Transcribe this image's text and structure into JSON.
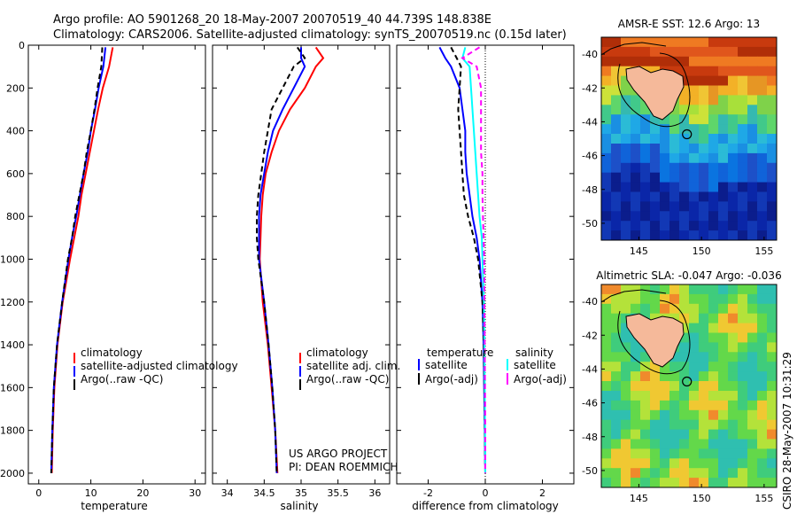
{
  "header": {
    "line1": "Argo profile: AO 5901268_20 18-May-2007 20070519_40 44.739S 148.838E",
    "line2": "Climatology: CARS2006. Satellite-adjusted climatology: synTS_20070519.nc (0.15d later)"
  },
  "credit": {
    "line1": "US ARGO PROJECT",
    "line2": "PI: DEAN ROEMMICH"
  },
  "stamp": "CSIRO 28-May-2007 10:31:29",
  "colors": {
    "climatology": "#ff0000",
    "satellite": "#0000ff",
    "argo": "#000000",
    "sal_satellite": "#00ffff",
    "sal_argo": "#ff00ff",
    "land": "#f5b99a"
  },
  "chart_data": [
    {
      "type": "line",
      "xlabel": "temperature",
      "xlim": [
        -2,
        32
      ],
      "xticks": [
        0,
        10,
        20,
        30
      ],
      "ylim": [
        2050,
        0
      ],
      "yticks": [
        0,
        200,
        400,
        600,
        800,
        1000,
        1200,
        1400,
        1600,
        1800,
        2000
      ],
      "y": [
        10,
        100,
        200,
        300,
        400,
        500,
        600,
        700,
        800,
        900,
        1000,
        1200,
        1400,
        1600,
        1800,
        2000
      ],
      "series": [
        {
          "name": "climatology",
          "color": "#ff0000",
          "dash": "",
          "values": [
            14.2,
            13.5,
            12.3,
            11.4,
            10.6,
            9.8,
            9.0,
            8.2,
            7.6,
            6.8,
            6.0,
            4.6,
            3.6,
            3.0,
            2.7,
            2.5
          ]
        },
        {
          "name": "satellite-adjusted climatology",
          "color": "#0000ff",
          "dash": "",
          "values": [
            12.8,
            12.4,
            11.5,
            10.8,
            10.0,
            9.4,
            8.6,
            7.9,
            7.2,
            6.4,
            5.7,
            4.5,
            3.5,
            2.9,
            2.6,
            2.4
          ]
        },
        {
          "name": "Argo(..raw -QC)",
          "color": "#000000",
          "dash": "6,4",
          "values": [
            12.2,
            12.0,
            11.3,
            10.7,
            10.0,
            9.2,
            8.6,
            7.8,
            7.0,
            6.4,
            5.6,
            4.5,
            3.5,
            2.9,
            2.6,
            2.4
          ]
        }
      ],
      "legend": {
        "position": "lower-right",
        "entries": [
          "climatology",
          "satellite-adjusted climatology",
          "Argo(..raw -QC)"
        ]
      }
    },
    {
      "type": "line",
      "xlabel": "salinity",
      "xlim": [
        33.8,
        36.2
      ],
      "xticks": [
        34,
        34.5,
        35,
        35.5,
        36
      ],
      "ylim": [
        2050,
        0
      ],
      "y": [
        10,
        60,
        100,
        200,
        300,
        400,
        500,
        600,
        700,
        800,
        900,
        1000,
        1200,
        1400,
        1600,
        1800,
        2000
      ],
      "series": [
        {
          "name": "climatology",
          "color": "#ff0000",
          "dash": "",
          "values": [
            35.2,
            35.3,
            35.2,
            35.05,
            34.85,
            34.7,
            34.6,
            34.52,
            34.48,
            34.46,
            34.45,
            34.44,
            34.48,
            34.55,
            34.6,
            34.65,
            34.68
          ]
        },
        {
          "name": "satellite adj. clim.",
          "color": "#0000ff",
          "dash": "",
          "values": [
            35.0,
            35.0,
            35.05,
            34.9,
            34.75,
            34.62,
            34.55,
            34.5,
            34.45,
            34.43,
            34.43,
            34.43,
            34.5,
            34.56,
            34.61,
            34.65,
            34.67
          ]
        },
        {
          "name": "Argo(..raw -QC)",
          "color": "#000000",
          "dash": "6,4",
          "values": [
            34.95,
            35.05,
            34.9,
            34.75,
            34.6,
            34.55,
            34.5,
            34.46,
            34.42,
            34.4,
            34.4,
            34.42,
            34.5,
            34.56,
            34.61,
            34.65,
            34.67
          ]
        }
      ],
      "legend": {
        "position": "lower-right",
        "entries": [
          "climatology",
          "satellite adj. clim.",
          "Argo(..raw -QC)"
        ]
      }
    },
    {
      "type": "line",
      "xlabel": "difference from climatology",
      "xlim": [
        -3.1,
        3.1
      ],
      "xticks": [
        -2,
        0,
        2
      ],
      "ylim": [
        2050,
        0
      ],
      "y": [
        10,
        60,
        100,
        200,
        300,
        400,
        500,
        600,
        700,
        800,
        900,
        1000,
        1200,
        1400,
        1600,
        1800,
        2000
      ],
      "series": [
        {
          "name": "temperature satellite",
          "color": "#0000ff",
          "dash": "",
          "values": [
            -1.6,
            -1.4,
            -1.2,
            -0.9,
            -0.8,
            -0.7,
            -0.7,
            -0.65,
            -0.55,
            -0.45,
            -0.3,
            -0.2,
            -0.1,
            -0.06,
            -0.04,
            -0.02,
            0.0
          ]
        },
        {
          "name": "temperature Argo(-adj)",
          "color": "#000000",
          "dash": "6,4",
          "values": [
            -1.2,
            -1.0,
            -0.85,
            -0.9,
            -0.95,
            -0.9,
            -0.85,
            -0.8,
            -0.75,
            -0.6,
            -0.4,
            -0.25,
            -0.1,
            -0.05,
            -0.03,
            -0.02,
            0.0
          ]
        },
        {
          "name": "salinity satellite",
          "color": "#00ffff",
          "dash": "",
          "values": [
            -0.7,
            -0.8,
            -0.55,
            -0.5,
            -0.45,
            -0.4,
            -0.35,
            -0.3,
            -0.25,
            -0.2,
            -0.12,
            -0.1,
            -0.05,
            -0.03,
            -0.02,
            -0.01,
            0.0
          ]
        },
        {
          "name": "salinity Argo(-adj)",
          "color": "#ff00ff",
          "dash": "6,4",
          "values": [
            -0.2,
            -0.8,
            -0.3,
            -0.15,
            -0.15,
            -0.15,
            -0.15,
            -0.1,
            -0.1,
            -0.08,
            -0.06,
            -0.04,
            -0.03,
            -0.02,
            -0.01,
            0.0,
            0.0
          ]
        }
      ],
      "legend": {
        "position": "lower-right",
        "columns": [
          "temperature",
          "salinity"
        ],
        "entries": [
          "satellite",
          "Argo(-adj)",
          "satellite",
          "Argo(-adj)"
        ]
      }
    },
    {
      "type": "heatmap",
      "title": "AMSR-E SST: 12.6 Argo: 13",
      "xlim": [
        142,
        156
      ],
      "xticks": [
        145,
        150,
        155
      ],
      "ylim": [
        -51,
        -39
      ],
      "yticks": [
        -40,
        -42,
        -44,
        -46,
        -48,
        -50
      ],
      "marker": {
        "lon": 148.838,
        "lat": -44.739
      }
    },
    {
      "type": "heatmap",
      "title": "Altimetric SLA: -0.047 Argo: -0.036",
      "xlim": [
        142,
        156
      ],
      "xticks": [
        145,
        150,
        155
      ],
      "ylim": [
        -51,
        -39
      ],
      "yticks": [
        -40,
        -42,
        -44,
        -46,
        -48,
        -50
      ],
      "marker": {
        "lon": 148.838,
        "lat": -44.739
      }
    }
  ]
}
